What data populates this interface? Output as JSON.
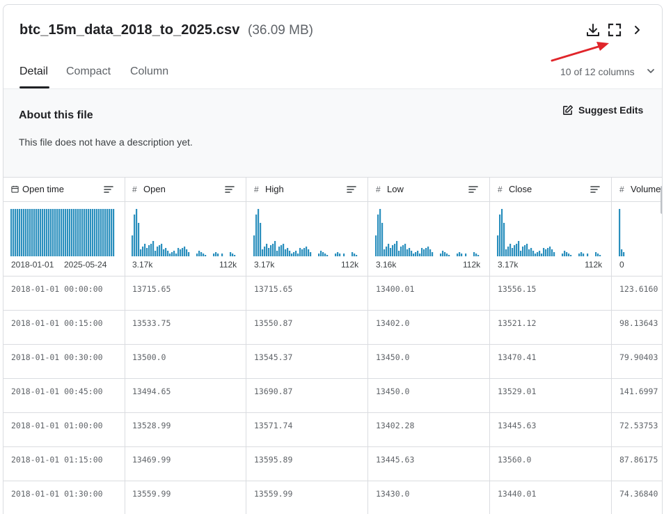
{
  "header": {
    "file_name": "btc_15m_data_2018_to_2025.csv",
    "file_size": "(36.09 MB)",
    "icons": [
      "download-icon",
      "fullscreen-icon",
      "chevron-right-icon"
    ]
  },
  "tabs": [
    {
      "label": "Detail",
      "active": true
    },
    {
      "label": "Compact",
      "active": false
    },
    {
      "label": "Column",
      "active": false
    }
  ],
  "columns_selector": "10 of 12 columns",
  "about": {
    "title": "About this file",
    "description": "This file does not have a description yet.",
    "suggest_label": "Suggest Edits"
  },
  "table": {
    "columns": [
      {
        "type_icon": "calendar-icon",
        "name": "Open time",
        "hist_low": "2018-01-01",
        "hist_high": "2025-05-24",
        "hist_kind": "uniform"
      },
      {
        "type_icon": "#",
        "name": "Open",
        "hist_low": "3.17k",
        "hist_high": "112k",
        "hist_kind": "skew"
      },
      {
        "type_icon": "#",
        "name": "High",
        "hist_low": "3.17k",
        "hist_high": "112k",
        "hist_kind": "skew"
      },
      {
        "type_icon": "#",
        "name": "Low",
        "hist_low": "3.16k",
        "hist_high": "112k",
        "hist_kind": "skew"
      },
      {
        "type_icon": "#",
        "name": "Close",
        "hist_low": "3.17k",
        "hist_high": "112k",
        "hist_kind": "skew"
      },
      {
        "type_icon": "#",
        "name": "Volume",
        "hist_low": "0",
        "hist_high": "",
        "hist_kind": "spike"
      }
    ],
    "rows": [
      [
        "2018-01-01 00:00:00",
        "13715.65",
        "13715.65",
        "13400.01",
        "13556.15",
        "123.6160"
      ],
      [
        "2018-01-01 00:15:00",
        "13533.75",
        "13550.87",
        "13402.0",
        "13521.12",
        "98.13643"
      ],
      [
        "2018-01-01 00:30:00",
        "13500.0",
        "13545.37",
        "13450.0",
        "13470.41",
        "79.90403"
      ],
      [
        "2018-01-01 00:45:00",
        "13494.65",
        "13690.87",
        "13450.0",
        "13529.01",
        "141.6997"
      ],
      [
        "2018-01-01 01:00:00",
        "13528.99",
        "13571.74",
        "13402.28",
        "13445.63",
        "72.53753"
      ],
      [
        "2018-01-01 01:15:00",
        "13469.99",
        "13595.89",
        "13445.63",
        "13560.0",
        "87.86175"
      ],
      [
        "2018-01-01 01:30:00",
        "13559.99",
        "13559.99",
        "13430.0",
        "13440.01",
        "74.36840"
      ]
    ]
  },
  "colors": {
    "histogram_bar": "#2a8fbd",
    "annotation_arrow": "#e0252a",
    "border": "#dadce0",
    "about_bg": "#f8f9fa"
  }
}
